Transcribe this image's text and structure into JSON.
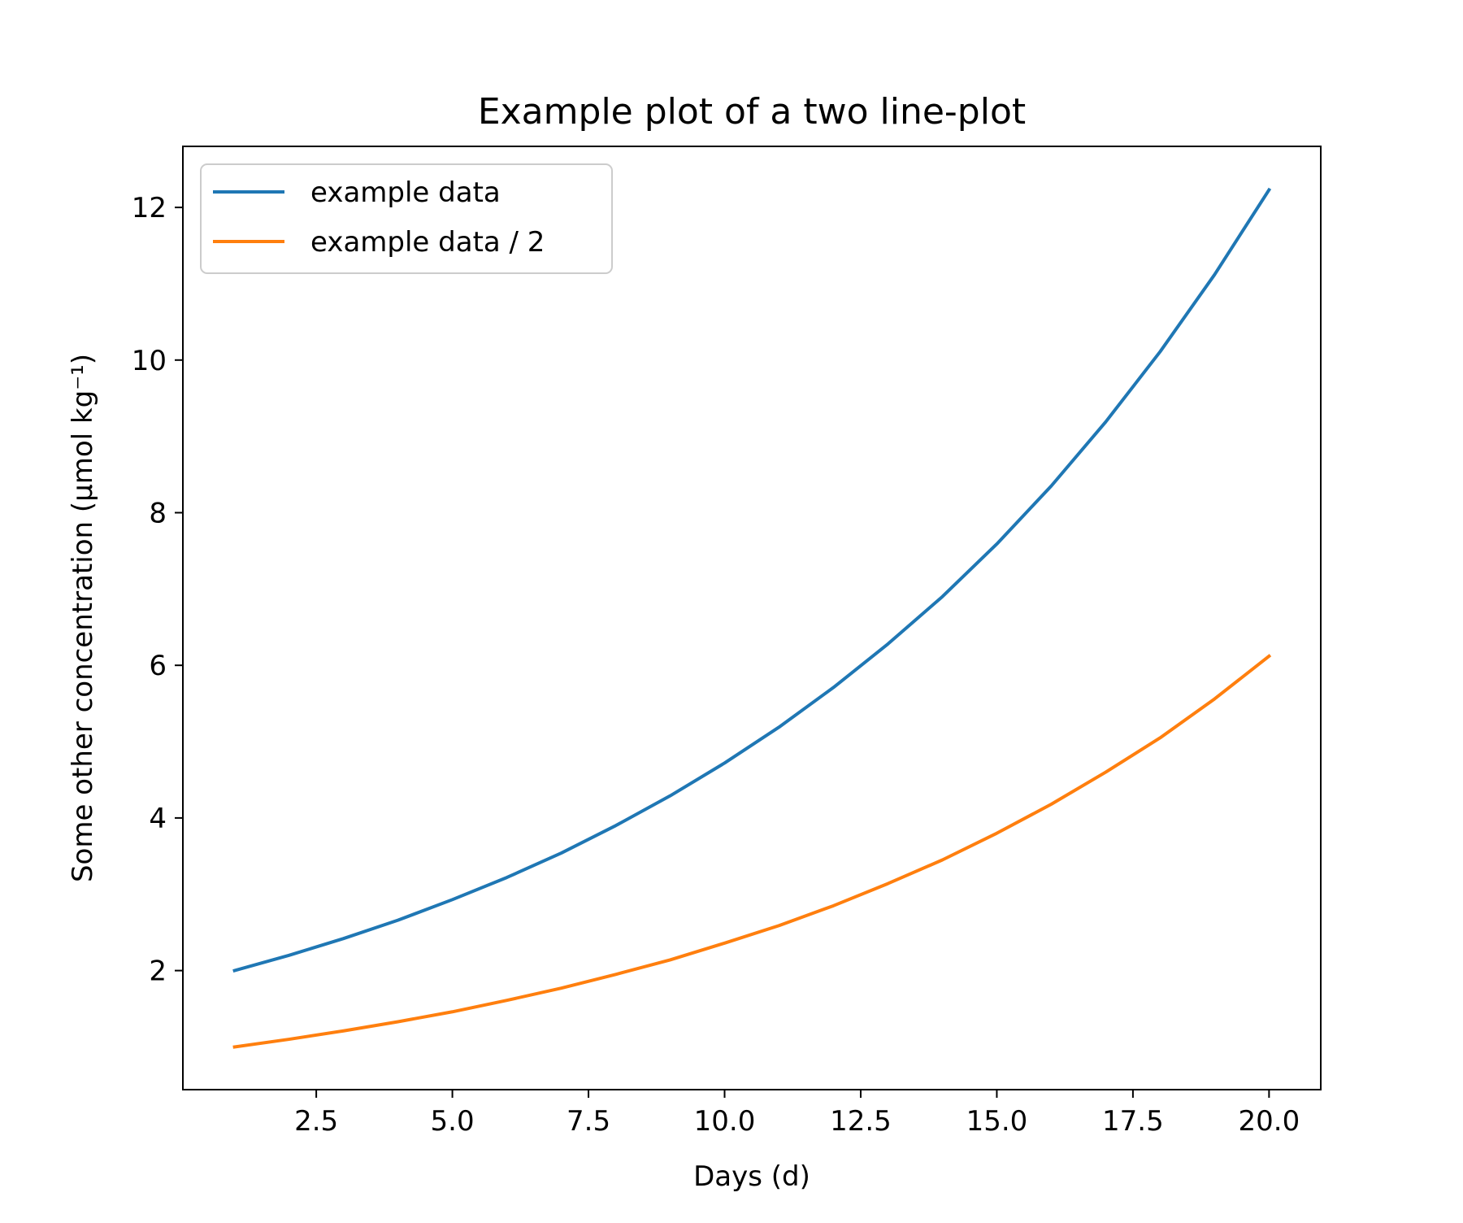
{
  "chart_data": {
    "type": "line",
    "title": "Example plot of a two line-plot",
    "xlabel": "Days (d)",
    "ylabel": "Some other concentration (μmol kg⁻¹)",
    "xlim": [
      0.05,
      20.95
    ],
    "ylim": [
      0.44,
      12.8
    ],
    "x_ticks": [
      2.5,
      5.0,
      7.5,
      10.0,
      12.5,
      15.0,
      17.5,
      20.0
    ],
    "x_tick_labels": [
      "2.5",
      "5.0",
      "7.5",
      "10.0",
      "12.5",
      "15.0",
      "17.5",
      "20.0"
    ],
    "y_ticks": [
      2,
      4,
      6,
      8,
      10,
      12
    ],
    "y_tick_labels": [
      "2",
      "4",
      "6",
      "8",
      "10",
      "12"
    ],
    "grid": false,
    "legend_position": "upper-left",
    "x": [
      1,
      2,
      3,
      4,
      5,
      6,
      7,
      8,
      9,
      10,
      11,
      12,
      13,
      14,
      15,
      16,
      17,
      18,
      19,
      20
    ],
    "series": [
      {
        "name": "example data",
        "color": "#1f77b4",
        "values": [
          2.0,
          2.2,
          2.42,
          2.66,
          2.93,
          3.22,
          3.54,
          3.9,
          4.29,
          4.72,
          5.19,
          5.71,
          6.28,
          6.9,
          7.59,
          8.35,
          9.19,
          10.11,
          11.12,
          12.23
        ]
      },
      {
        "name": "example data / 2",
        "color": "#ff7f0e",
        "values": [
          1.0,
          1.1,
          1.21,
          1.33,
          1.46,
          1.61,
          1.77,
          1.95,
          2.14,
          2.36,
          2.59,
          2.85,
          3.14,
          3.45,
          3.8,
          4.18,
          4.6,
          5.05,
          5.56,
          6.12
        ]
      }
    ]
  }
}
